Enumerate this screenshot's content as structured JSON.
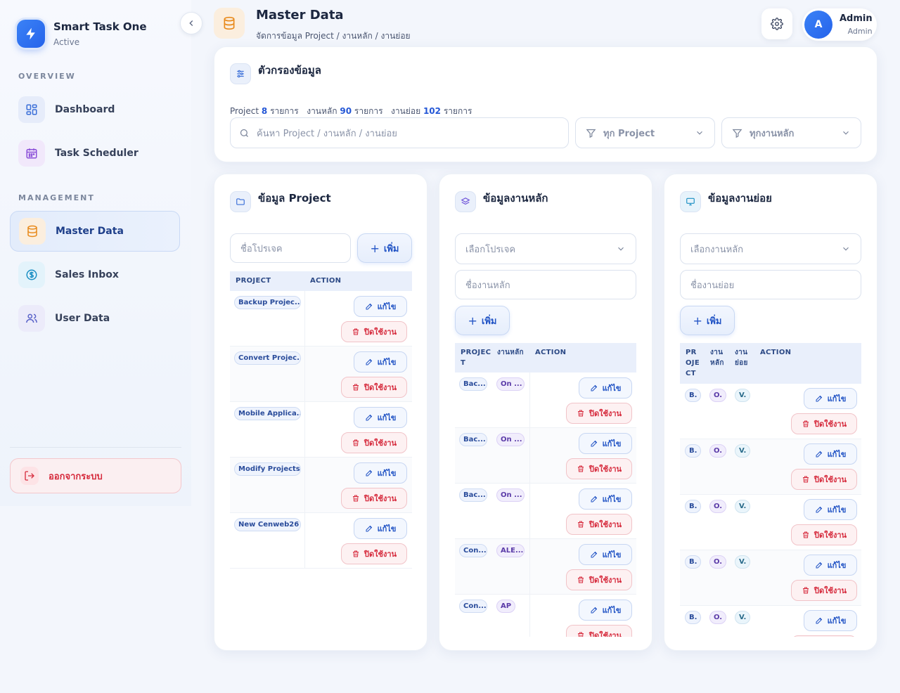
{
  "brand": {
    "name": "Smart Task One",
    "status": "Active"
  },
  "sidebar": {
    "overview_label": "OVERVIEW",
    "management_label": "MANAGEMENT",
    "items": [
      {
        "label": "Dashboard",
        "icon": "dashboard-icon"
      },
      {
        "label": "Task Scheduler",
        "icon": "calendar-icon"
      },
      {
        "label": "Master Data",
        "icon": "database-icon",
        "active": true
      },
      {
        "label": "Sales Inbox",
        "icon": "dollar-icon"
      },
      {
        "label": "User Data",
        "icon": "users-icon"
      }
    ],
    "logout_label": "ออกจากระบบ"
  },
  "header": {
    "title": "Master Data",
    "breadcrumb": "จัดการข้อมูล Project / งานหลัก / งานย่อย",
    "user_name": "Admin",
    "user_role": "Admin",
    "avatar_initial": "A"
  },
  "filter": {
    "title": "ตัวกรองข้อมูล",
    "stats": [
      {
        "label": "Project",
        "count": "8",
        "unit": "รายการ"
      },
      {
        "label": "งานหลัก",
        "count": "90",
        "unit": "รายการ"
      },
      {
        "label": "งานย่อย",
        "count": "102",
        "unit": "รายการ"
      }
    ],
    "search_placeholder": "ค้นหา Project / งานหลัก / งานย่อย",
    "project_select": "ทุก Project",
    "main_task_select": "ทุกงานหลัก"
  },
  "actions": {
    "edit": "แก้ไข",
    "disable": "ปิดใช้งาน",
    "add": "เพิ่ม"
  },
  "project_panel": {
    "title": "ข้อมูล Project",
    "input_placeholder": "ชื่อโปรเจค",
    "col_project": "PROJECT",
    "col_action": "ACTION",
    "rows": [
      "Backup Projec...",
      "Convert Projec...",
      "Mobile Applica...",
      "Modify Projects",
      "New Cenweb26"
    ]
  },
  "main_panel": {
    "title": "ข้อมูลงานหลัก",
    "select_placeholder": "เลือกโปรเจค",
    "input_placeholder": "ชื่องานหลัก",
    "col_project_a": "PROJEC",
    "col_project_b": "T",
    "col_main": "งานหลัก",
    "col_action": "ACTION",
    "rows": [
      {
        "project": "Bac...",
        "main": "On ..."
      },
      {
        "project": "Bac...",
        "main": "On ..."
      },
      {
        "project": "Bac...",
        "main": "On ..."
      },
      {
        "project": "Con...",
        "main": "ALE..."
      },
      {
        "project": "Con...",
        "main": "AP"
      }
    ]
  },
  "sub_panel": {
    "title": "ข้อมูลงานย่อย",
    "select_placeholder": "เลือกงานหลัก",
    "input_placeholder": "ชื่องานย่อย",
    "col_project": [
      "PR",
      "OJE",
      "CT"
    ],
    "col_main": [
      "งาน",
      "หลัก"
    ],
    "col_sub": [
      "งาน",
      "ย่อย"
    ],
    "col_action": "ACTION",
    "rows": [
      {
        "project": "B.",
        "main": "O.",
        "sub": "V."
      },
      {
        "project": "B.",
        "main": "O.",
        "sub": "V."
      },
      {
        "project": "B.",
        "main": "O.",
        "sub": "V."
      },
      {
        "project": "B.",
        "main": "O.",
        "sub": "V."
      },
      {
        "project": "B.",
        "main": "O.",
        "sub": "V."
      }
    ]
  },
  "colors": {
    "accent": "#2563eb",
    "danger": "#d62b3d",
    "master_data_icon": "#e8891a"
  }
}
